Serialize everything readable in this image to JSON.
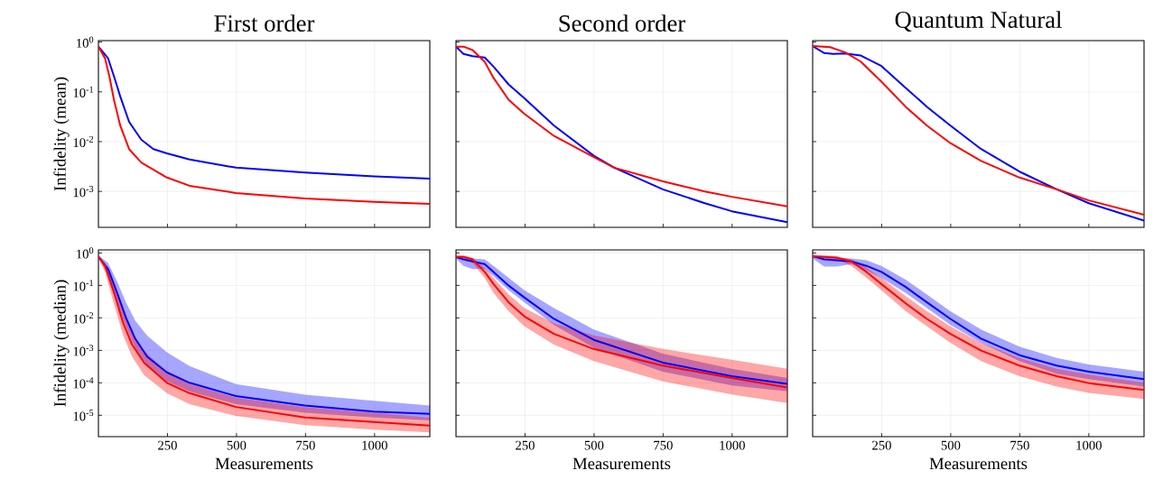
{
  "chart_data": [
    {
      "type": "line",
      "title": "First order",
      "ylabel": "Infidelity (mean)",
      "log": true,
      "grid": true,
      "tick_labels": "y",
      "xlim": [
        0,
        1200
      ],
      "xticks": [
        250,
        500,
        750,
        1000
      ],
      "ylim": [
        0.00019,
        1.07
      ],
      "yticks": [
        {
          "value": 1,
          "label": "10$^{0}$"
        },
        {
          "value": 0.1,
          "label": "10$^{-1}$"
        },
        {
          "value": 0.01,
          "label": "10$^{-2}$"
        },
        {
          "value": 0.001,
          "label": "10$^{-3}$"
        }
      ],
      "series": [
        {
          "color": "#0000ff",
          "x": [
            0,
            35,
            57,
            79,
            111,
            155,
            199,
            248,
            330,
            498,
            748,
            998,
            1200
          ],
          "values": [
            0.81,
            0.47,
            0.2,
            0.081,
            0.025,
            0.011,
            0.0071,
            0.0058,
            0.0044,
            0.003,
            0.0024,
            0.002,
            0.0018
          ]
        },
        {
          "color": "#ff0000",
          "x": [
            0,
            24,
            40,
            57,
            79,
            111,
            155,
            248,
            330,
            498,
            748,
            998,
            1200
          ],
          "values": [
            0.81,
            0.47,
            0.2,
            0.066,
            0.021,
            0.0071,
            0.0038,
            0.0019,
            0.0013,
            0.00093,
            0.00072,
            0.00062,
            0.00056
          ]
        }
      ]
    },
    {
      "type": "line",
      "title": "Second order",
      "log": true,
      "grid": true,
      "tick_labels": false,
      "xlim": [
        0,
        1200
      ],
      "xticks": [
        250,
        500,
        750,
        1000
      ],
      "ylim": [
        0.00019,
        1.07
      ],
      "yticks": [
        {
          "value": 1,
          "label": null
        },
        {
          "value": 0.1,
          "label": null
        },
        {
          "value": 0.01,
          "label": null
        },
        {
          "value": 0.001,
          "label": null
        }
      ],
      "series": [
        {
          "color": "#0000ff",
          "x": [
            0,
            27,
            60,
            104,
            136,
            191,
            248,
            355,
            499,
            573,
            749,
            901,
            999,
            1200
          ],
          "values": [
            0.81,
            0.58,
            0.52,
            0.49,
            0.32,
            0.14,
            0.074,
            0.021,
            0.0052,
            0.003,
            0.0011,
            0.00058,
            0.0004,
            0.00024
          ]
        },
        {
          "color": "#ff0000",
          "x": [
            0,
            27,
            60,
            104,
            136,
            191,
            248,
            355,
            499,
            573,
            749,
            901,
            999,
            1200
          ],
          "values": [
            0.81,
            0.81,
            0.69,
            0.4,
            0.19,
            0.069,
            0.036,
            0.013,
            0.0049,
            0.003,
            0.0016,
            0.001,
            0.00078,
            0.0005
          ]
        }
      ]
    },
    {
      "type": "line",
      "title": "Quantum Natural",
      "log": true,
      "grid": true,
      "tick_labels": false,
      "xlim": [
        0,
        1200
      ],
      "xticks": [
        250,
        500,
        750,
        1000
      ],
      "ylim": [
        0.00019,
        1.07
      ],
      "yticks": [
        {
          "value": 1,
          "label": null
        },
        {
          "value": 0.1,
          "label": null
        },
        {
          "value": 0.01,
          "label": null
        },
        {
          "value": 0.001,
          "label": null
        }
      ],
      "series": [
        {
          "color": "#0000ff",
          "x": [
            0,
            42,
            74,
            118,
            173,
            249,
            337,
            414,
            499,
            610,
            749,
            884,
            1000,
            1200
          ],
          "values": [
            0.83,
            0.6,
            0.58,
            0.59,
            0.54,
            0.33,
            0.12,
            0.05,
            0.021,
            0.0071,
            0.0025,
            0.0011,
            0.00058,
            0.00026
          ]
        },
        {
          "color": "#ff0000",
          "x": [
            0,
            63,
            118,
            173,
            249,
            337,
            414,
            499,
            610,
            749,
            884,
            1000,
            1200
          ],
          "values": [
            0.83,
            0.79,
            0.62,
            0.41,
            0.16,
            0.05,
            0.021,
            0.0093,
            0.0041,
            0.0019,
            0.0011,
            0.00066,
            0.00034
          ]
        }
      ]
    },
    {
      "type": "line",
      "xlabel": "Measurements",
      "ylabel": "Infidelity (median)",
      "log": true,
      "grid": true,
      "xlim": [
        0,
        1200
      ],
      "xticks": [
        250,
        500,
        750,
        1000
      ],
      "ylim": [
        2.2e-06,
        1.24
      ],
      "yticks": [
        {
          "value": 1,
          "label": "10$^{0}$"
        },
        {
          "value": 0.1,
          "label": "10$^{-1}$"
        },
        {
          "value": 0.01,
          "label": "10$^{-2}$"
        },
        {
          "value": 0.001,
          "label": "10$^{-3}$"
        },
        {
          "value": 0.0001,
          "label": "10$^{-4}$"
        },
        {
          "value": 1e-05,
          "label": "10$^{-5}$"
        }
      ],
      "series": [
        {
          "color": "#0000ff",
          "x": [
            0,
            35,
            68,
            100,
            133,
            177,
            248,
            330,
            498,
            748,
            998,
            1200
          ],
          "values": [
            0.76,
            0.32,
            0.058,
            0.01,
            0.0023,
            0.00063,
            0.00021,
            0.0001,
            3.9e-05,
            2e-05,
            1.3e-05,
            1.1e-05
          ],
          "upper": [
            0.85,
            0.49,
            0.13,
            0.03,
            0.0083,
            0.0028,
            0.00087,
            0.00033,
            9.1e-05,
            4.3e-05,
            2.8e-05,
            2e-05
          ],
          "lower": [
            0.72,
            0.21,
            0.03,
            0.0054,
            0.0012,
            0.00033,
            0.00011,
            5.4e-05,
            2.2e-05,
            1.2e-05,
            8.5e-06,
            6.9e-06
          ]
        },
        {
          "color": "#ff0000",
          "x": [
            0,
            24,
            57,
            90,
            122,
            166,
            248,
            330,
            498,
            748,
            998,
            1200
          ],
          "values": [
            0.76,
            0.4,
            0.058,
            0.0068,
            0.0015,
            0.00041,
            0.0001,
            4.8e-05,
            1.8e-05,
            8.5e-06,
            6.2e-06,
            4.8e-06
          ],
          "upper": [
            0.79,
            0.49,
            0.11,
            0.016,
            0.0035,
            0.00098,
            0.00021,
            9.1e-05,
            3.5e-05,
            1.8e-05,
            1.2e-05,
            8.5e-06
          ],
          "lower": [
            0.68,
            0.26,
            0.025,
            0.0028,
            0.00063,
            0.00017,
            4.8e-05,
            2.2e-05,
            9.5e-06,
            5e-06,
            3.6e-06,
            3e-06
          ]
        }
      ]
    },
    {
      "type": "line",
      "xlabel": "Measurements",
      "log": true,
      "grid": true,
      "tick_labels": "x",
      "xlim": [
        0,
        1200
      ],
      "xticks": [
        250,
        500,
        750,
        1000
      ],
      "ylim": [
        2.2e-06,
        1.24
      ],
      "yticks": [
        {
          "value": 1,
          "label": null
        },
        {
          "value": 0.1,
          "label": null
        },
        {
          "value": 0.01,
          "label": null
        },
        {
          "value": 0.001,
          "label": null
        },
        {
          "value": 0.0001,
          "label": null
        },
        {
          "value": 1e-05,
          "label": null
        }
      ],
      "series": [
        {
          "color": "#0000ff",
          "x": [
            0,
            27,
            60,
            104,
            136,
            191,
            248,
            355,
            499,
            749,
            999,
            1200
          ],
          "values": [
            0.76,
            0.63,
            0.55,
            0.45,
            0.26,
            0.098,
            0.042,
            0.0093,
            0.0021,
            0.00042,
            0.00016,
            9.3e-05
          ],
          "upper": [
            0.81,
            0.72,
            0.68,
            0.63,
            0.4,
            0.17,
            0.071,
            0.02,
            0.0044,
            0.00079,
            0.00027,
            0.00014
          ],
          "lower": [
            0.68,
            0.4,
            0.32,
            0.32,
            0.19,
            0.071,
            0.03,
            0.006,
            0.0012,
            0.00022,
            8.3e-05,
            5.5e-05
          ]
        },
        {
          "color": "#ff0000",
          "x": [
            0,
            27,
            60,
            104,
            136,
            191,
            248,
            355,
            499,
            749,
            999,
            1200
          ],
          "values": [
            0.76,
            0.76,
            0.63,
            0.26,
            0.11,
            0.03,
            0.011,
            0.0032,
            0.0011,
            0.00034,
            0.00014,
            7.2e-05
          ],
          "upper": [
            0.85,
            0.85,
            0.72,
            0.35,
            0.17,
            0.052,
            0.02,
            0.0068,
            0.0029,
            0.0011,
            0.00051,
            0.00027
          ],
          "lower": [
            0.68,
            0.63,
            0.49,
            0.17,
            0.058,
            0.016,
            0.0055,
            0.0015,
            0.00047,
            0.00011,
            4.4e-05,
            2.4e-05
          ]
        }
      ]
    },
    {
      "type": "line",
      "xlabel": "Measurements",
      "log": true,
      "grid": true,
      "tick_labels": "x",
      "xlim": [
        0,
        1200
      ],
      "xticks": [
        250,
        500,
        750,
        1000
      ],
      "ylim": [
        2.2e-06,
        1.24
      ],
      "yticks": [
        {
          "value": 1,
          "label": null
        },
        {
          "value": 0.1,
          "label": null
        },
        {
          "value": 0.01,
          "label": null
        },
        {
          "value": 0.001,
          "label": null
        },
        {
          "value": 0.0001,
          "label": null
        },
        {
          "value": 1e-05,
          "label": null
        }
      ],
      "series": [
        {
          "color": "#0000ff",
          "x": [
            0,
            42,
            85,
            140,
            195,
            249,
            337,
            414,
            499,
            610,
            749,
            884,
            1000,
            1200
          ],
          "values": [
            0.79,
            0.63,
            0.59,
            0.55,
            0.4,
            0.26,
            0.089,
            0.03,
            0.0093,
            0.0023,
            0.00071,
            0.00034,
            0.00022,
            0.00013
          ],
          "upper": [
            0.83,
            0.72,
            0.71,
            0.68,
            0.59,
            0.4,
            0.15,
            0.052,
            0.016,
            0.0044,
            0.0013,
            0.00058,
            0.00037,
            0.00022
          ],
          "lower": [
            0.68,
            0.38,
            0.38,
            0.45,
            0.29,
            0.17,
            0.058,
            0.02,
            0.006,
            0.0017,
            0.00047,
            0.00019,
            0.00013,
            7.6e-05
          ]
        },
        {
          "color": "#ff0000",
          "x": [
            0,
            42,
            85,
            140,
            195,
            249,
            337,
            414,
            499,
            610,
            749,
            884,
            1000,
            1200
          ],
          "values": [
            0.79,
            0.76,
            0.72,
            0.55,
            0.26,
            0.11,
            0.028,
            0.0093,
            0.0032,
            0.00098,
            0.00034,
            0.00016,
            9.8e-05,
            6e-05
          ],
          "upper": [
            0.85,
            0.85,
            0.81,
            0.63,
            0.35,
            0.17,
            0.047,
            0.016,
            0.0055,
            0.0017,
            0.00058,
            0.00027,
            0.00018,
            0.0001
          ],
          "lower": [
            0.72,
            0.68,
            0.62,
            0.4,
            0.17,
            0.071,
            0.016,
            0.0055,
            0.0017,
            0.00047,
            0.00016,
            7.6e-05,
            4.9e-05,
            3.2e-05
          ]
        }
      ]
    }
  ]
}
